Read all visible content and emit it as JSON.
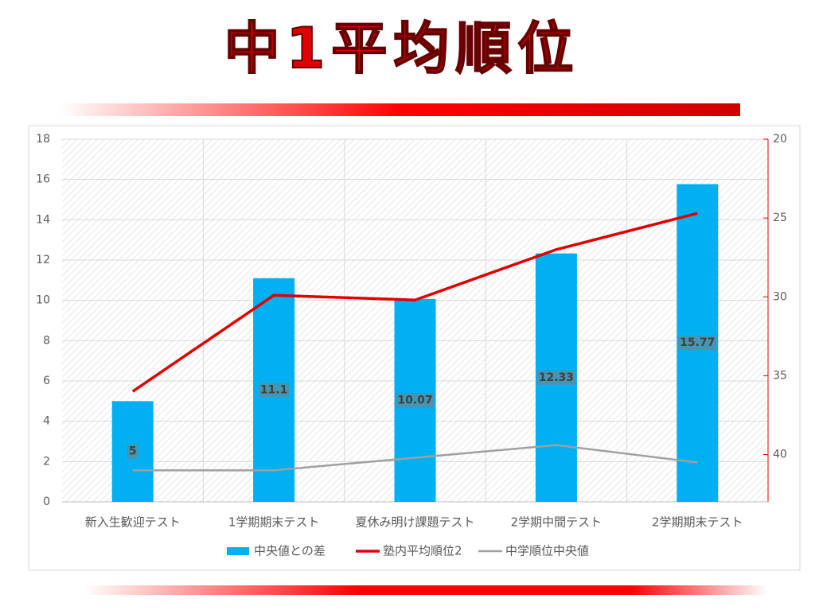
{
  "chart_data": {
    "type": "bar-line",
    "title": "中1平均順位",
    "categories": [
      "新入生歓迎テスト",
      "1学期期末テスト",
      "夏休み明け課題テスト",
      "2学期中間テスト",
      "2学期期末テスト"
    ],
    "series": [
      {
        "name": "中央値との差",
        "type": "bar",
        "color": "#00b0f0",
        "values": [
          5,
          11.1,
          10.07,
          12.33,
          15.77
        ]
      },
      {
        "name": "塾内平均順位2",
        "type": "line",
        "axis": "y2",
        "color": "#e00000",
        "values": [
          36.0,
          29.9,
          30.2,
          27.0,
          24.7
        ]
      },
      {
        "name": "中学順位中央値",
        "type": "line",
        "axis": "y2",
        "color": "#a0a0a0",
        "values": [
          41.0,
          41.0,
          40.2,
          39.4,
          40.5
        ]
      }
    ],
    "ylim": [
      0,
      18
    ],
    "yticks": [
      0,
      2,
      4,
      6,
      8,
      10,
      12,
      14,
      16,
      18
    ],
    "y2lim": [
      20,
      43
    ],
    "y2ticks": [
      20,
      25,
      30,
      35,
      40
    ],
    "y2_reversed": true,
    "grid": true
  }
}
